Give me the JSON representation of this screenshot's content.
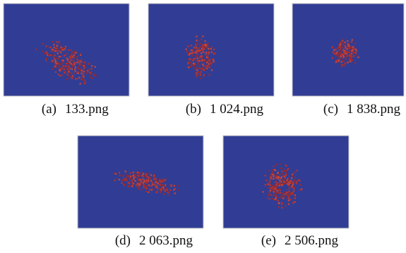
{
  "panels": [
    {
      "label": "(a)",
      "file": "133.png"
    },
    {
      "label": "(b)",
      "file": "1 024.png"
    },
    {
      "label": "(c)",
      "file": "1 838.png"
    },
    {
      "label": "(d)",
      "file": "2 063.png"
    },
    {
      "label": "(e)",
      "file": "2 506.png"
    }
  ]
}
